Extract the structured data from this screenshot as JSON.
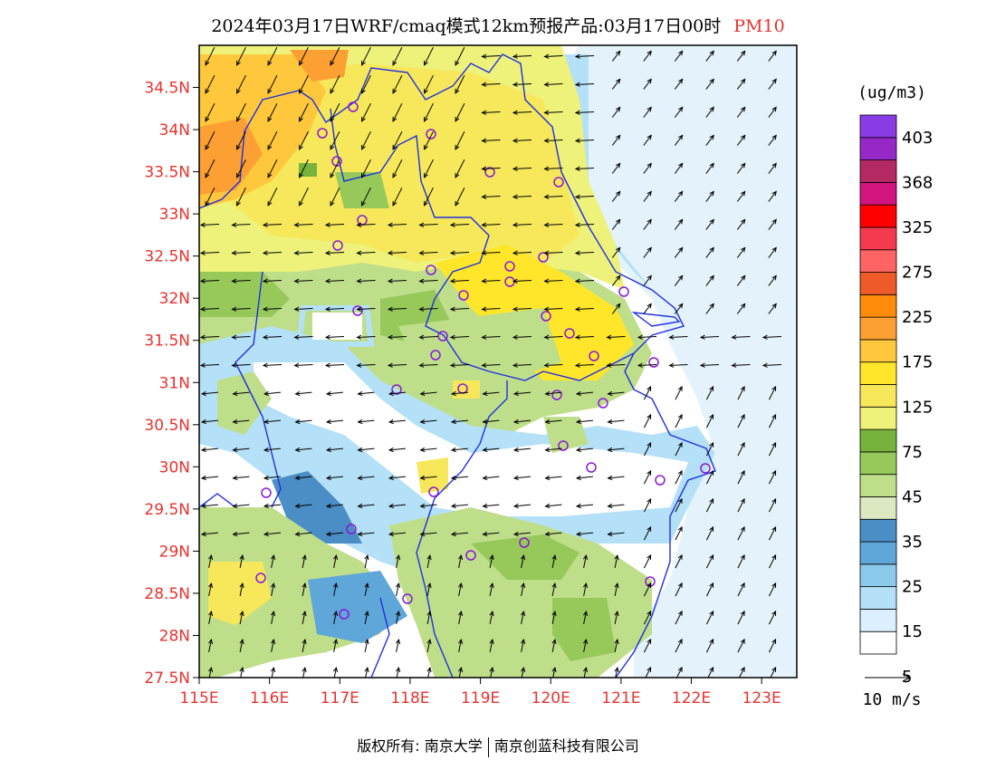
{
  "header": {
    "title": "2024年03月17日WRF/cmaq模式12km预报产品:03月17日00时",
    "pollutant": "PM10"
  },
  "map": {
    "lat_labels": [
      "34.5N",
      "34N",
      "33.5N",
      "33N",
      "32.5N",
      "32N",
      "31.5N",
      "31N",
      "30.5N",
      "30N",
      "29.5N",
      "29N",
      "28.5N",
      "28N",
      "27.5N"
    ],
    "lon_labels": [
      "115E",
      "116E",
      "117E",
      "118E",
      "119E",
      "120E",
      "121E",
      "122E",
      "123E"
    ],
    "lat_range": [
      27.5,
      35.0
    ],
    "lon_range": [
      115.0,
      123.5
    ]
  },
  "colorbar": {
    "unit": "(ug/m3)",
    "labels": [
      "403",
      "368",
      "325",
      "275",
      "225",
      "175",
      "125",
      "75",
      "45",
      "35",
      "25",
      "15",
      "5"
    ],
    "colors": [
      "#ffffff",
      "#dcefff",
      "#b4e1f7",
      "#8ccaec",
      "#5fa6d9",
      "#4b8ec6",
      "#dce8c0",
      "#bede8a",
      "#96c85a",
      "#76b23c",
      "#eef27a",
      "#f6e85a",
      "#ffe62a",
      "#ffc83c",
      "#fca034",
      "#fc8c0a",
      "#ee5a28",
      "#fe6464",
      "#f53a50",
      "#ff0000",
      "#d2147e",
      "#b42864",
      "#9628c8",
      "#8a3ce4"
    ]
  },
  "wind_legend": {
    "label": "10 m/s"
  },
  "footer": {
    "left": "版权所有: 南京大学",
    "right": "南京创蓝科技有限公司"
  }
}
